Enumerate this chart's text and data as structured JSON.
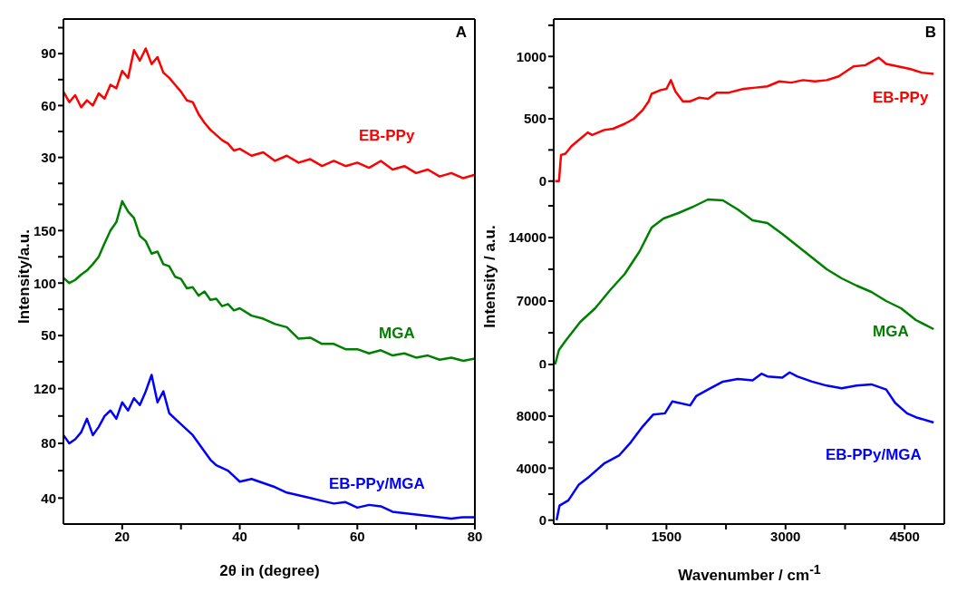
{
  "chart_data": [
    {
      "type": "line",
      "annotations": [
        "A"
      ],
      "x": [
        10,
        11,
        12,
        13,
        14,
        15,
        16,
        17,
        18,
        19,
        20,
        21,
        22,
        23,
        24,
        25,
        26,
        27,
        28,
        29,
        30,
        31,
        32,
        33,
        34,
        35,
        36,
        37,
        38,
        39,
        40,
        42,
        44,
        46,
        48,
        50,
        52,
        54,
        56,
        58,
        60,
        62,
        64,
        66,
        68,
        70,
        72,
        74,
        76,
        78,
        80
      ],
      "series": [
        {
          "name": "EB-PPy",
          "color": "#ff0000",
          "values": [
            68,
            62,
            66,
            59,
            63,
            60,
            67,
            64,
            72,
            70,
            80,
            76,
            92,
            86,
            93,
            84,
            88,
            79,
            76,
            72,
            68,
            63,
            62,
            55,
            50,
            46,
            43,
            40,
            38,
            34,
            35,
            31,
            33,
            28,
            31,
            27,
            29,
            25,
            28,
            25,
            27,
            24,
            28,
            23,
            25,
            21,
            23,
            19,
            21,
            18,
            20
          ]
        }
      ],
      "xlim": [
        10,
        80
      ],
      "ylim": [
        12,
        110
      ],
      "yticks": [
        {
          "value": 15,
          "label": null
        },
        30,
        {
          "value": 45,
          "label": null
        },
        60,
        {
          "value": 75,
          "label": null
        },
        90,
        {
          "value": 105,
          "label": null
        }
      ],
      "tick_labels": "y"
    },
    {
      "type": "line",
      "ylabel": "Intensity/a.u.",
      "x": [
        10,
        11,
        12,
        13,
        14,
        15,
        16,
        17,
        18,
        19,
        20,
        21,
        22,
        23,
        24,
        25,
        26,
        27,
        28,
        29,
        30,
        31,
        32,
        33,
        34,
        35,
        36,
        37,
        38,
        39,
        40,
        42,
        44,
        46,
        48,
        50,
        52,
        54,
        56,
        58,
        60,
        62,
        64,
        66,
        68,
        70,
        72,
        74,
        76,
        78,
        80
      ],
      "series": [
        {
          "name": "MGA",
          "color": "#008000",
          "values": [
            105,
            100,
            103,
            108,
            112,
            118,
            125,
            138,
            150,
            158,
            178,
            168,
            162,
            145,
            140,
            128,
            130,
            118,
            116,
            106,
            104,
            95,
            96,
            88,
            92,
            84,
            85,
            78,
            80,
            74,
            76,
            69,
            66,
            61,
            58,
            47,
            48,
            42,
            42,
            37,
            37,
            33,
            36,
            31,
            33,
            29,
            31,
            27,
            29,
            26,
            28
          ]
        }
      ],
      "xlim": [
        10,
        80
      ],
      "ylim": [
        19,
        190
      ],
      "yticks": [
        {
          "value": 25,
          "label": null
        },
        50,
        {
          "value": 75,
          "label": null
        },
        100,
        {
          "value": 125,
          "label": null
        },
        150,
        {
          "value": 175,
          "label": null
        }
      ],
      "tick_labels": "y"
    },
    {
      "type": "line",
      "xlabel": "2θ in (degree)",
      "x": [
        10,
        11,
        12,
        13,
        14,
        15,
        16,
        17,
        18,
        19,
        20,
        21,
        22,
        23,
        24,
        25,
        26,
        27,
        28,
        29,
        30,
        31,
        32,
        33,
        34,
        35,
        36,
        37,
        38,
        39,
        40,
        42,
        44,
        46,
        48,
        50,
        52,
        54,
        56,
        58,
        60,
        62,
        64,
        66,
        68,
        70,
        72,
        74,
        76,
        78,
        80
      ],
      "series": [
        {
          "name": "EB-PPy/MGA",
          "color": "#0000ff",
          "values": [
            86,
            80,
            83,
            88,
            98,
            86,
            92,
            100,
            104,
            98,
            110,
            104,
            113,
            108,
            118,
            130,
            110,
            118,
            102,
            98,
            94,
            90,
            86,
            80,
            74,
            68,
            64,
            62,
            60,
            56,
            52,
            54,
            51,
            48,
            44,
            42,
            40,
            38,
            36,
            37,
            33,
            35,
            34,
            30,
            29,
            28,
            27,
            26,
            25,
            26,
            26
          ]
        }
      ],
      "xlim": [
        10,
        80
      ],
      "xticks": [
        20,
        {
          "value": 30,
          "label": null
        },
        40,
        {
          "value": 50,
          "label": null
        },
        60,
        {
          "value": 70,
          "label": null
        },
        80
      ],
      "ylim": [
        21,
        135
      ],
      "yticks": [
        40,
        {
          "value": 60,
          "label": null
        },
        80,
        {
          "value": 100,
          "label": null
        },
        120
      ]
    },
    {
      "type": "line",
      "annotations": [
        "B"
      ],
      "x": [
        97,
        146,
        172,
        228,
        303,
        415,
        509,
        565,
        715,
        827,
        976,
        1089,
        1201,
        1276,
        1313,
        1425,
        1500,
        1556,
        1612,
        1706,
        1799,
        1912,
        2024,
        2136,
        2286,
        2472,
        2622,
        2772,
        2922,
        3071,
        3220,
        3370,
        3520,
        3669,
        3856,
        4006,
        4174,
        4268,
        4417,
        4567,
        4717,
        4866
      ],
      "series": [
        {
          "name": "EB-PPy",
          "color": "#ff0000",
          "values": [
            0,
            0,
            210,
            220,
            280,
            340,
            390,
            370,
            410,
            420,
            460,
            500,
            570,
            640,
            700,
            730,
            740,
            810,
            720,
            640,
            640,
            670,
            660,
            710,
            710,
            740,
            750,
            760,
            800,
            790,
            810,
            800,
            810,
            840,
            920,
            930,
            990,
            940,
            920,
            900,
            870,
            860
          ]
        }
      ],
      "xlim": [
        80,
        5000
      ],
      "ylim": [
        -60,
        1300
      ],
      "yticks": [
        0,
        {
          "value": 250,
          "label": null
        },
        500,
        {
          "value": 750,
          "label": null
        },
        1000,
        {
          "value": 1250,
          "label": null
        }
      ],
      "tick_labels": "y"
    },
    {
      "type": "line",
      "ylabel": "Intensity / a.u.",
      "x": [
        97,
        146,
        228,
        415,
        602,
        790,
        976,
        1163,
        1313,
        1463,
        1650,
        1837,
        2024,
        2211,
        2398,
        2585,
        2772,
        2959,
        3146,
        3333,
        3520,
        3707,
        3894,
        4081,
        4268,
        4455,
        4642,
        4866
      ],
      "series": [
        {
          "name": "MGA",
          "color": "#008000",
          "values": [
            0,
            1600,
            2600,
            4700,
            6200,
            8200,
            10000,
            12500,
            15100,
            16100,
            16700,
            17400,
            18200,
            18100,
            17100,
            15900,
            15600,
            14400,
            13100,
            11800,
            10500,
            9500,
            8700,
            8000,
            7000,
            6200,
            4900,
            3900
          ]
        }
      ],
      "xlim": [
        80,
        5000
      ],
      "ylim": [
        -400,
        19400
      ],
      "yticks": [
        0,
        {
          "value": 3500,
          "label": null
        },
        7000,
        {
          "value": 10500,
          "label": null
        },
        14000,
        {
          "value": 17500,
          "label": null
        }
      ],
      "tick_labels": "y"
    },
    {
      "type": "line",
      "xlabel": "Wavenumber / cm$^{-1}$",
      "x": [
        116,
        153,
        265,
        397,
        528,
        715,
        902,
        1051,
        1201,
        1332,
        1481,
        1575,
        1799,
        1874,
        2024,
        2211,
        2398,
        2585,
        2697,
        2772,
        2959,
        3052,
        3146,
        3333,
        3520,
        3707,
        3894,
        4081,
        4268,
        4380,
        4530,
        4642,
        4866
      ],
      "series": [
        {
          "name": "EB-PPy/MGA",
          "color": "#0000ff",
          "values": [
            0,
            1120,
            1520,
            2740,
            3350,
            4360,
            4970,
            5990,
            7210,
            8120,
            8220,
            9140,
            8830,
            9540,
            10050,
            10660,
            10860,
            10760,
            11270,
            11060,
            10960,
            11370,
            11060,
            10660,
            10350,
            10150,
            10350,
            10450,
            10050,
            9030,
            8220,
            7920,
            7510
          ]
        }
      ],
      "xlim": [
        80,
        5000
      ],
      "xticks": [
        {
          "value": 750,
          "label": null
        },
        1500,
        {
          "value": 2250,
          "label": null
        },
        3000,
        {
          "value": 3750,
          "label": null
        },
        4500
      ],
      "ylim": [
        -300,
        11700
      ],
      "yticks": [
        0,
        {
          "value": 2000,
          "label": null
        },
        4000,
        {
          "value": 6000,
          "label": null
        },
        8000,
        {
          "value": 10000,
          "label": null
        }
      ]
    }
  ]
}
